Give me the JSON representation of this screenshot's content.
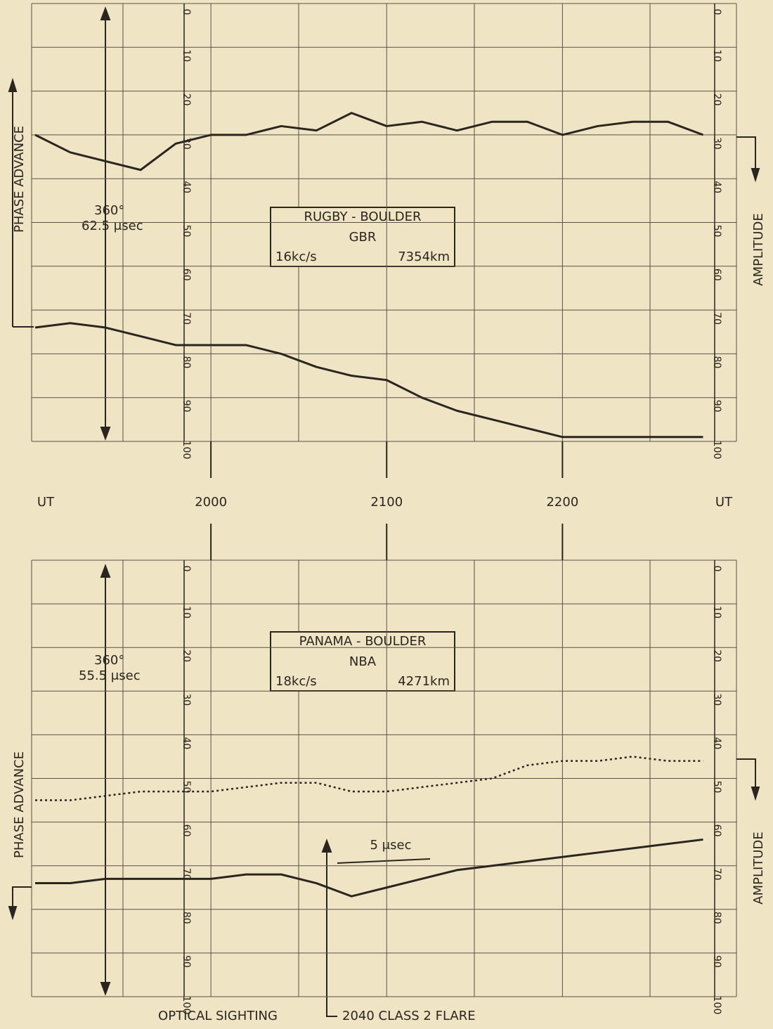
{
  "chart_data": [
    {
      "type": "line",
      "ylabel": "PHASE ADVANCE",
      "y2label": "AMPLITUDE",
      "xlabel": "UT",
      "annotations": [
        "360°",
        "62.5 μsec",
        "RUGBY - BOULDER",
        "GBR",
        "16kc/s",
        "7354km"
      ],
      "x": [
        19.0,
        19.2,
        19.4,
        19.6,
        19.8,
        20.0,
        20.2,
        20.4,
        20.6,
        20.8,
        21.0,
        21.2,
        21.4,
        21.6,
        21.8,
        22.0,
        22.2,
        22.4,
        22.6,
        22.8
      ],
      "series": [
        {
          "color": "#2b2520",
          "line_style": "solid",
          "values": [
            30,
            34,
            36,
            38,
            32,
            30,
            30,
            28,
            29,
            25,
            28,
            27,
            29,
            27,
            27,
            30,
            28,
            27,
            27,
            30
          ]
        },
        {
          "color": "#2b2520",
          "line_style": "solid",
          "values": [
            74,
            73,
            74,
            76,
            78,
            78,
            78,
            80,
            83,
            85,
            86,
            90,
            93,
            95,
            97,
            99,
            99,
            99,
            99,
            99
          ]
        }
      ],
      "xlim": [
        18.98,
        22.99
      ],
      "xticks": [
        {
          "value": 20,
          "label": "2000"
        },
        {
          "value": 21,
          "label": "2100"
        },
        {
          "value": 22,
          "label": "2200"
        }
      ],
      "ylim": [
        100,
        0
      ],
      "yticks": [
        0,
        10,
        20,
        30,
        40,
        50,
        60,
        70,
        80,
        90,
        100
      ],
      "grid": true
    },
    {
      "type": "line",
      "ylabel": "PHASE ADVANCE",
      "y2label": "AMPLITUDE",
      "annotations": [
        "360°",
        "55.5 μsec",
        "PANAMA - BOULDER",
        "NBA",
        "18kc/s",
        "4271km",
        "5 μsec",
        "OPTICAL SIGHTING",
        "2040 CLASS 2 FLARE"
      ],
      "x": [
        19.0,
        19.2,
        19.4,
        19.6,
        19.8,
        20.0,
        20.2,
        20.4,
        20.6,
        20.8,
        21.0,
        21.2,
        21.4,
        21.6,
        21.8,
        22.0,
        22.2,
        22.4,
        22.6,
        22.8
      ],
      "series": [
        {
          "color": "#2b2520",
          "line_style": "dotted",
          "values": [
            55,
            55,
            54,
            53,
            53,
            53,
            52,
            51,
            51,
            53,
            53,
            52,
            51,
            50,
            47,
            46,
            46,
            45,
            46,
            46
          ]
        },
        {
          "color": "#2b2520",
          "line_style": "solid",
          "values": [
            74,
            74,
            73,
            73,
            73,
            73,
            72,
            72,
            74,
            77,
            75,
            73,
            71,
            70,
            69,
            68,
            67,
            66,
            65,
            64
          ]
        }
      ],
      "xlim": [
        18.98,
        22.99
      ],
      "xticks": [
        {
          "value": 20,
          "label": "2000"
        },
        {
          "value": 21,
          "label": "2100"
        },
        {
          "value": 22,
          "label": "2200"
        }
      ],
      "ylim": [
        100,
        0
      ],
      "yticks": [
        0,
        10,
        20,
        30,
        40,
        50,
        60,
        70,
        80,
        90,
        100
      ],
      "grid": true
    }
  ]
}
